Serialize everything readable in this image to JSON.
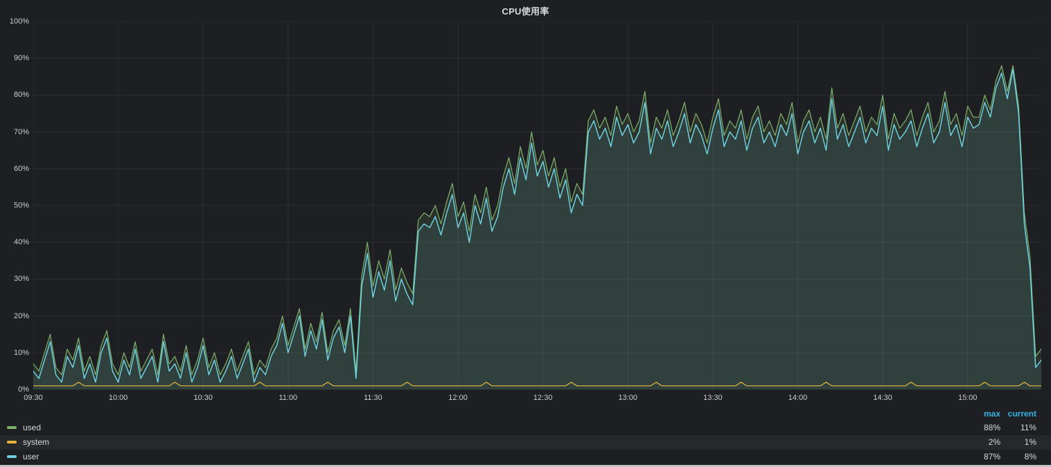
{
  "title": "CPU使用率",
  "colors": {
    "background": "#1e1f22",
    "grid": "rgba(255,255,255,0.065)",
    "text": "#d8d9da",
    "tick_text": "#cccdcf",
    "legend_header": "#33b5e5",
    "used": "#7EB26D",
    "system": "#EAB839",
    "user": "#6ED0E0"
  },
  "legend": {
    "headers": [
      "max",
      "current"
    ],
    "rows": [
      {
        "label": "used",
        "color": "#7EB26D",
        "max": "88%",
        "current": "11%"
      },
      {
        "label": "system",
        "color": "#EAB839",
        "max": "2%",
        "current": "1%"
      },
      {
        "label": "user",
        "color": "#6ED0E0",
        "max": "87%",
        "current": "8%"
      }
    ]
  },
  "chart_data": {
    "type": "area",
    "title": "CPU使用率",
    "ylabel": "",
    "xlabel": "",
    "ylim": [
      0,
      100
    ],
    "y_tick_values": [
      0,
      10,
      20,
      30,
      40,
      50,
      60,
      70,
      80,
      90,
      100
    ],
    "y_tick_labels": [
      "0%",
      "10%",
      "20%",
      "30%",
      "40%",
      "50%",
      "60%",
      "70%",
      "80%",
      "90%",
      "100%"
    ],
    "x_total_minutes": 356,
    "x_step_minutes": 2,
    "x_start_label": "09:30",
    "x_tick_minutes": [
      0,
      30,
      60,
      90,
      120,
      150,
      180,
      210,
      240,
      270,
      300,
      330
    ],
    "x_tick_labels": [
      "09:30",
      "10:00",
      "10:30",
      "11:00",
      "11:30",
      "12:00",
      "12:30",
      "13:00",
      "13:30",
      "14:00",
      "14:30",
      "15:00"
    ],
    "grid": true,
    "legend_position": "bottom",
    "series": [
      {
        "name": "used",
        "color": "#7EB26D",
        "fill_opacity": 0.13,
        "line_width": 1.2,
        "values": [
          7,
          5,
          10,
          15,
          6,
          4,
          11,
          8,
          14,
          5,
          9,
          4,
          12,
          16,
          7,
          4,
          10,
          6,
          13,
          5,
          8,
          11,
          4,
          15,
          7,
          9,
          5,
          12,
          4,
          8,
          14,
          6,
          10,
          4,
          7,
          11,
          5,
          9,
          13,
          4,
          8,
          6,
          11,
          14,
          20,
          12,
          17,
          22,
          11,
          18,
          13,
          21,
          10,
          16,
          19,
          12,
          22,
          5,
          31,
          40,
          28,
          35,
          30,
          38,
          27,
          33,
          29,
          26,
          46,
          48,
          47,
          50,
          45,
          51,
          56,
          47,
          51,
          43,
          53,
          48,
          55,
          46,
          50,
          58,
          63,
          56,
          66,
          60,
          70,
          61,
          65,
          58,
          63,
          55,
          60,
          51,
          56,
          53,
          73,
          76,
          71,
          74,
          69,
          77,
          72,
          75,
          70,
          73,
          81,
          67,
          74,
          71,
          76,
          69,
          73,
          78,
          70,
          75,
          72,
          67,
          74,
          79,
          69,
          73,
          71,
          76,
          68,
          74,
          77,
          70,
          73,
          69,
          75,
          72,
          78,
          67,
          73,
          76,
          70,
          74,
          68,
          82,
          71,
          75,
          69,
          73,
          77,
          70,
          74,
          72,
          80,
          68,
          75,
          71,
          73,
          76,
          69,
          74,
          78,
          70,
          73,
          81,
          72,
          75,
          69,
          77,
          74,
          74,
          80,
          76,
          84,
          88,
          81,
          88,
          77,
          48,
          36,
          9,
          11
        ]
      },
      {
        "name": "system",
        "color": "#EAB839",
        "fill_opacity": 0,
        "line_width": 1.2,
        "values": [
          1,
          1,
          1,
          1,
          1,
          1,
          1,
          1,
          2,
          1,
          1,
          1,
          1,
          1,
          1,
          1,
          1,
          1,
          1,
          1,
          1,
          1,
          1,
          1,
          1,
          2,
          1,
          1,
          1,
          1,
          1,
          1,
          1,
          1,
          1,
          1,
          1,
          1,
          1,
          1,
          2,
          1,
          1,
          1,
          1,
          1,
          1,
          1,
          1,
          1,
          1,
          1,
          2,
          1,
          1,
          1,
          1,
          1,
          1,
          1,
          1,
          1,
          1,
          1,
          1,
          1,
          2,
          1,
          1,
          1,
          1,
          1,
          1,
          1,
          1,
          1,
          1,
          1,
          1,
          1,
          2,
          1,
          1,
          1,
          1,
          1,
          1,
          1,
          1,
          1,
          1,
          1,
          1,
          1,
          1,
          2,
          1,
          1,
          1,
          1,
          1,
          1,
          1,
          1,
          1,
          1,
          1,
          1,
          1,
          1,
          2,
          1,
          1,
          1,
          1,
          1,
          1,
          1,
          1,
          1,
          1,
          1,
          1,
          1,
          1,
          2,
          1,
          1,
          1,
          1,
          1,
          1,
          1,
          1,
          1,
          1,
          1,
          1,
          1,
          1,
          2,
          1,
          1,
          1,
          1,
          1,
          1,
          1,
          1,
          1,
          1,
          1,
          1,
          1,
          1,
          2,
          1,
          1,
          1,
          1,
          1,
          1,
          1,
          1,
          1,
          1,
          1,
          1,
          2,
          1,
          1,
          1,
          1,
          1,
          1,
          2,
          1,
          1,
          1
        ]
      },
      {
        "name": "user",
        "color": "#6ED0E0",
        "fill_opacity": 0.1,
        "line_width": 1.5,
        "values": [
          5,
          3,
          8,
          13,
          4,
          2,
          9,
          6,
          12,
          3,
          7,
          2,
          10,
          14,
          5,
          2,
          8,
          4,
          11,
          3,
          6,
          9,
          2,
          13,
          5,
          7,
          3,
          10,
          2,
          6,
          12,
          4,
          8,
          2,
          5,
          9,
          3,
          7,
          11,
          2,
          6,
          4,
          9,
          12,
          18,
          10,
          15,
          20,
          9,
          16,
          11,
          19,
          8,
          14,
          17,
          10,
          20,
          3,
          28,
          37,
          25,
          32,
          27,
          35,
          24,
          30,
          26,
          23,
          43,
          45,
          44,
          47,
          42,
          48,
          53,
          44,
          48,
          40,
          50,
          45,
          52,
          43,
          47,
          55,
          60,
          53,
          63,
          57,
          67,
          58,
          62,
          55,
          60,
          52,
          57,
          48,
          53,
          50,
          70,
          73,
          68,
          71,
          66,
          74,
          69,
          72,
          67,
          70,
          78,
          64,
          71,
          68,
          73,
          66,
          70,
          75,
          67,
          72,
          69,
          64,
          71,
          76,
          66,
          70,
          68,
          73,
          65,
          71,
          74,
          67,
          70,
          66,
          72,
          69,
          75,
          64,
          70,
          73,
          67,
          71,
          65,
          79,
          68,
          72,
          66,
          70,
          74,
          67,
          71,
          69,
          77,
          65,
          72,
          68,
          70,
          73,
          66,
          71,
          75,
          67,
          70,
          78,
          69,
          72,
          66,
          74,
          71,
          72,
          78,
          74,
          82,
          86,
          79,
          87,
          75,
          45,
          33,
          6,
          8
        ]
      }
    ]
  }
}
